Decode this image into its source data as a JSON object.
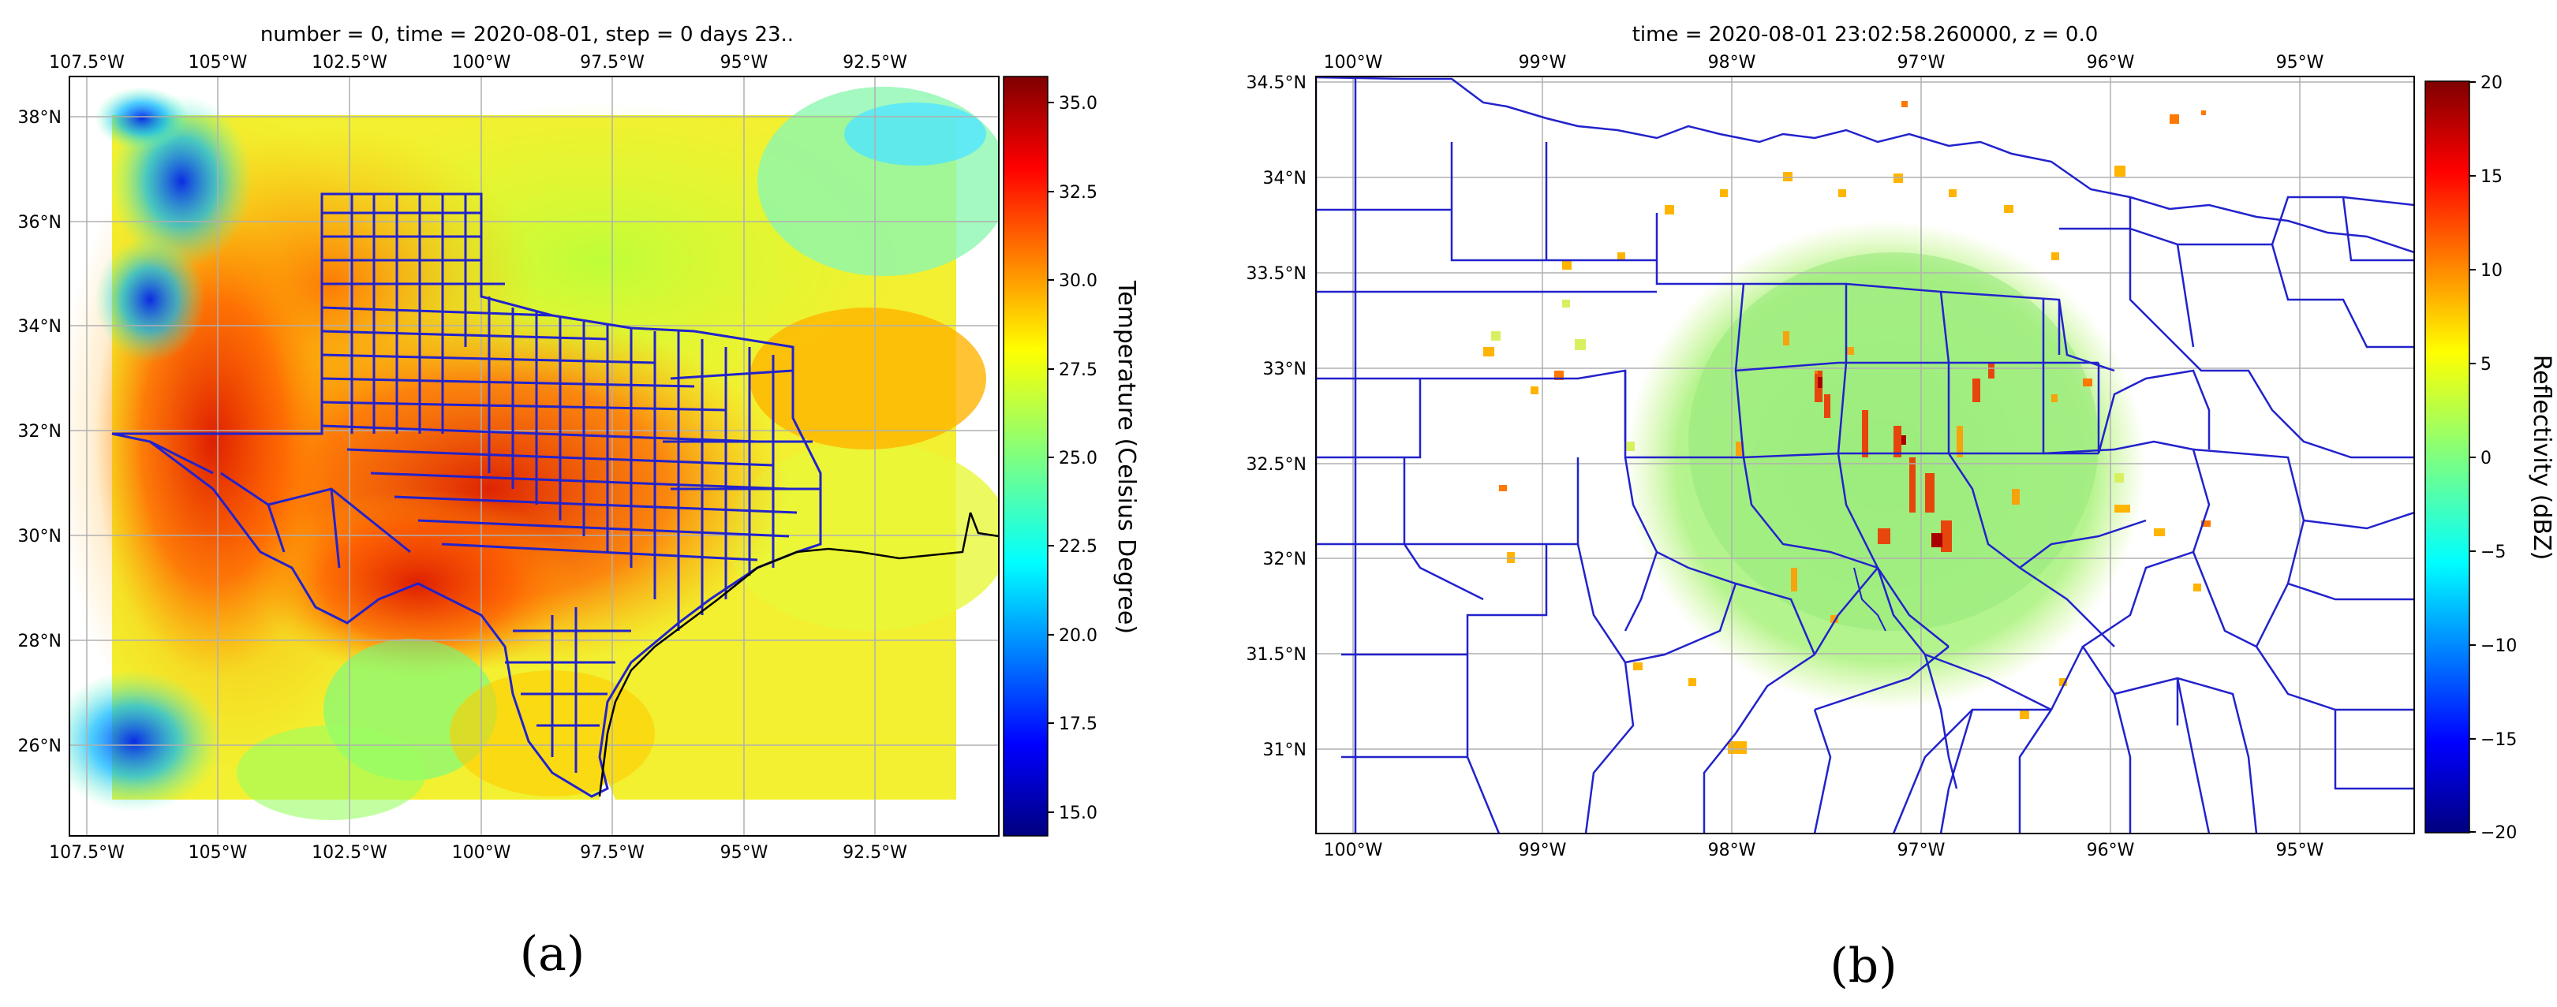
{
  "panels": [
    {
      "id": "a",
      "title": "number = 0, time = 2020-08-01, step = 0 days 23..",
      "panel_label": "(a)",
      "x_ticks": [
        "107.5°W",
        "105°W",
        "102.5°W",
        "100°W",
        "97.5°W",
        "95°W",
        "92.5°W"
      ],
      "y_ticks": [
        "38°N",
        "36°N",
        "34°N",
        "32°N",
        "30°N",
        "28°N",
        "26°N"
      ],
      "colorbar": {
        "label": "Temperature (Celsius Degree)",
        "ticks": [
          "35.0",
          "32.5",
          "30.0",
          "27.5",
          "25.0",
          "22.5",
          "20.0",
          "17.5",
          "15.0"
        ],
        "range": [
          14.3,
          35.8
        ]
      }
    },
    {
      "id": "b",
      "title": "time = 2020-08-01 23:02:58.260000, z = 0.0",
      "panel_label": "(b)",
      "x_ticks": [
        "100°W",
        "99°W",
        "98°W",
        "97°W",
        "96°W",
        "95°W"
      ],
      "y_ticks": [
        "34.5°N",
        "34°N",
        "33.5°N",
        "33°N",
        "32.5°N",
        "32°N",
        "31.5°N",
        "31°N"
      ],
      "colorbar": {
        "label": "Reflectivity (dBZ)",
        "ticks": [
          "20",
          "15",
          "10",
          "5",
          "0",
          "−5",
          "−10",
          "−15",
          "−20"
        ],
        "range": [
          -20,
          20
        ]
      }
    }
  ],
  "colors": {
    "boundary": "#2222cc",
    "coast": "#000000",
    "grid": "#b0b0b0",
    "jet": [
      "#00007f",
      "#0000ff",
      "#007fff",
      "#00ffff",
      "#7fff7f",
      "#ffff00",
      "#ff7f00",
      "#ff0000",
      "#7f0000"
    ]
  }
}
